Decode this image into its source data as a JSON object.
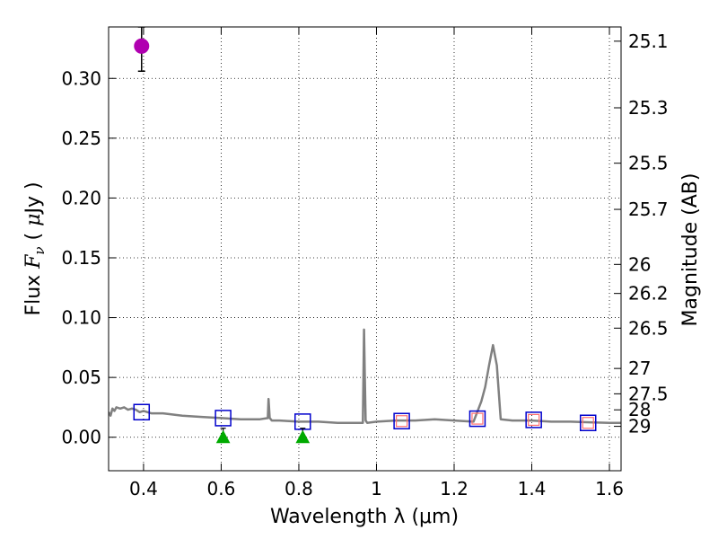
{
  "chart_data": {
    "type": "scatter",
    "xlabel": "Wavelength  λ (μm)",
    "ylabel": "Flux  F_ν  ( μJy )",
    "y2label": "Magnitude (AB)",
    "xlim": [
      0.31,
      1.63
    ],
    "ylim": [
      -0.028,
      0.343
    ],
    "grid": true,
    "x_ticks": [
      0.4,
      0.6,
      0.8,
      1.0,
      1.2,
      1.4,
      1.6
    ],
    "x_tick_labels": [
      "0.4",
      "0.6",
      "0.8",
      "1",
      "1.2",
      "1.4",
      "1.6"
    ],
    "y_ticks": [
      0.0,
      0.05,
      0.1,
      0.15,
      0.2,
      0.25,
      0.3
    ],
    "y_tick_labels": [
      "0.00",
      "0.05",
      "0.10",
      "0.15",
      "0.20",
      "0.25",
      "0.30"
    ],
    "mag_ticks": [
      {
        "label": "25.1",
        "flux": 0.3311
      },
      {
        "label": "25.3",
        "flux": 0.2754
      },
      {
        "label": "25.5",
        "flux": 0.2291
      },
      {
        "label": "25.7",
        "flux": 0.1905
      },
      {
        "label": "26",
        "flux": 0.1445
      },
      {
        "label": "26.2",
        "flux": 0.1202
      },
      {
        "label": "26.5",
        "flux": 0.0912
      },
      {
        "label": "27",
        "flux": 0.0575
      },
      {
        "label": "27.5",
        "flux": 0.0363
      },
      {
        "label": "28",
        "flux": 0.0229
      },
      {
        "label": "29",
        "flux": 0.0091
      }
    ],
    "detection": {
      "x": 0.395,
      "y": 0.327,
      "err_low": 0.306,
      "err_high": 0.343,
      "color": "#b000b0"
    },
    "upper_limits": [
      {
        "x": 0.605,
        "y": 0.0
      },
      {
        "x": 0.81,
        "y": 0.0
      }
    ],
    "model_photometry": [
      {
        "x": 0.395,
        "y": 0.021
      },
      {
        "x": 0.605,
        "y": 0.016
      },
      {
        "x": 0.81,
        "y": 0.013
      },
      {
        "x": 1.065,
        "y": 0.0135
      },
      {
        "x": 1.26,
        "y": 0.0155
      },
      {
        "x": 1.405,
        "y": 0.0145
      },
      {
        "x": 1.545,
        "y": 0.012
      }
    ],
    "observed_limits_nir": [
      {
        "x": 1.065,
        "y": 0.0135
      },
      {
        "x": 1.26,
        "y": 0.0155
      },
      {
        "x": 1.405,
        "y": 0.0145
      },
      {
        "x": 1.545,
        "y": 0.012
      }
    ],
    "spectrum": {
      "x": [
        0.31,
        0.315,
        0.32,
        0.325,
        0.33,
        0.34,
        0.35,
        0.36,
        0.37,
        0.38,
        0.39,
        0.4,
        0.42,
        0.45,
        0.5,
        0.55,
        0.6,
        0.65,
        0.7,
        0.72,
        0.722,
        0.725,
        0.728,
        0.73,
        0.75,
        0.8,
        0.85,
        0.9,
        0.95,
        0.965,
        0.968,
        0.97,
        0.972,
        0.976,
        1.0,
        1.05,
        1.1,
        1.15,
        1.2,
        1.25,
        1.27,
        1.28,
        1.29,
        1.3,
        1.31,
        1.32,
        1.35,
        1.4,
        1.45,
        1.5,
        1.55,
        1.6,
        1.63
      ],
      "y": [
        0.021,
        0.018,
        0.024,
        0.022,
        0.025,
        0.024,
        0.025,
        0.023,
        0.024,
        0.023,
        0.021,
        0.022,
        0.02,
        0.02,
        0.018,
        0.017,
        0.016,
        0.015,
        0.015,
        0.016,
        0.032,
        0.016,
        0.015,
        0.014,
        0.014,
        0.013,
        0.013,
        0.012,
        0.012,
        0.012,
        0.09,
        0.05,
        0.014,
        0.012,
        0.013,
        0.014,
        0.014,
        0.015,
        0.014,
        0.013,
        0.03,
        0.042,
        0.06,
        0.077,
        0.06,
        0.015,
        0.014,
        0.014,
        0.013,
        0.013,
        0.0125,
        0.012,
        0.012
      ]
    },
    "colors": {
      "spectrum": "#808080",
      "model_box": "#0000cc",
      "observed_box": "#ff7070",
      "upper_limit": "#00aa00",
      "detection": "#b000b0"
    }
  }
}
